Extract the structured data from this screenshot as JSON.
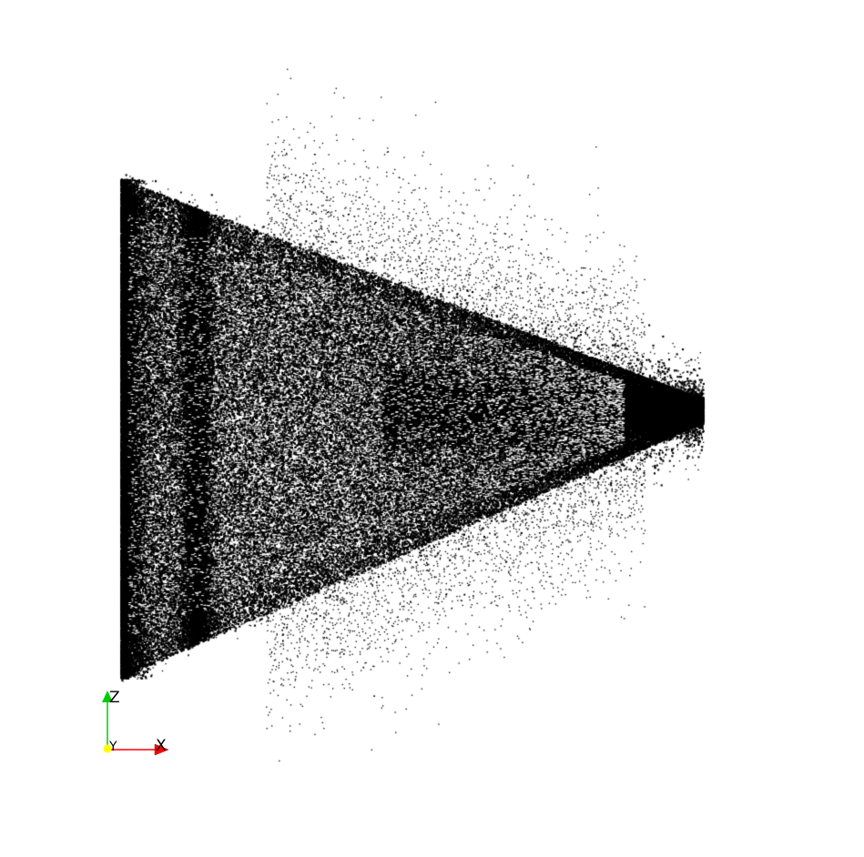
{
  "scene": {
    "background_color": "#ffffff",
    "point_color": "#000000",
    "description_shape": "triangular point cloud narrowing to a dense band"
  },
  "orientation_axes": {
    "x": {
      "label": "X",
      "color": "#ff0000"
    },
    "y": {
      "label": "Y",
      "color": "#ffff00"
    },
    "z": {
      "label": "Z",
      "color": "#00cc00"
    }
  }
}
